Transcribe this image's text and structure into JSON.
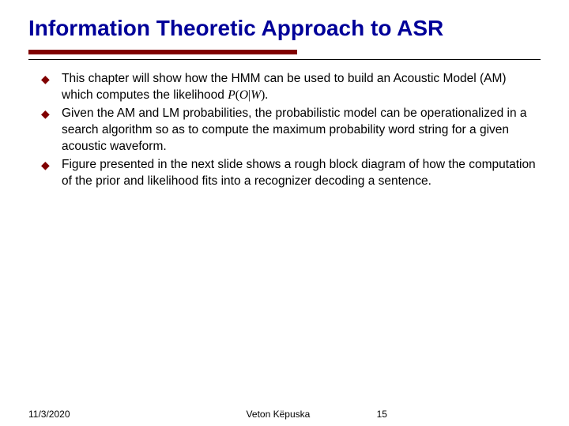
{
  "title": "Information Theoretic Approach to ASR",
  "title_color": "#000099",
  "underline_color": "#800000",
  "bullet_color": "#800000",
  "body_fontsize": 15.5,
  "bullets": [
    {
      "pre": "This chapter will show how the HMM can be used to build an Acoustic Model (AM) which computes the likelihood ",
      "formula_P": "P",
      "formula_open": "(",
      "formula_O": "O",
      "formula_bar": "|",
      "formula_W": "W",
      "formula_close": ").",
      "post": ""
    },
    {
      "pre": "Given the AM and LM probabilities, the probabilistic model can be operationalized in a search algorithm so as to compute the maximum probability word string for a given acoustic waveform.",
      "formula_P": "",
      "formula_open": "",
      "formula_O": "",
      "formula_bar": "",
      "formula_W": "",
      "formula_close": "",
      "post": ""
    },
    {
      "pre": "Figure presented in the next slide shows a rough block diagram of how the computation of the prior and likelihood fits into a recognizer decoding a sentence.",
      "formula_P": "",
      "formula_open": "",
      "formula_O": "",
      "formula_bar": "",
      "formula_W": "",
      "formula_close": "",
      "post": ""
    }
  ],
  "footer": {
    "date": "11/3/2020",
    "author": "Veton Këpuska",
    "page": "15"
  }
}
